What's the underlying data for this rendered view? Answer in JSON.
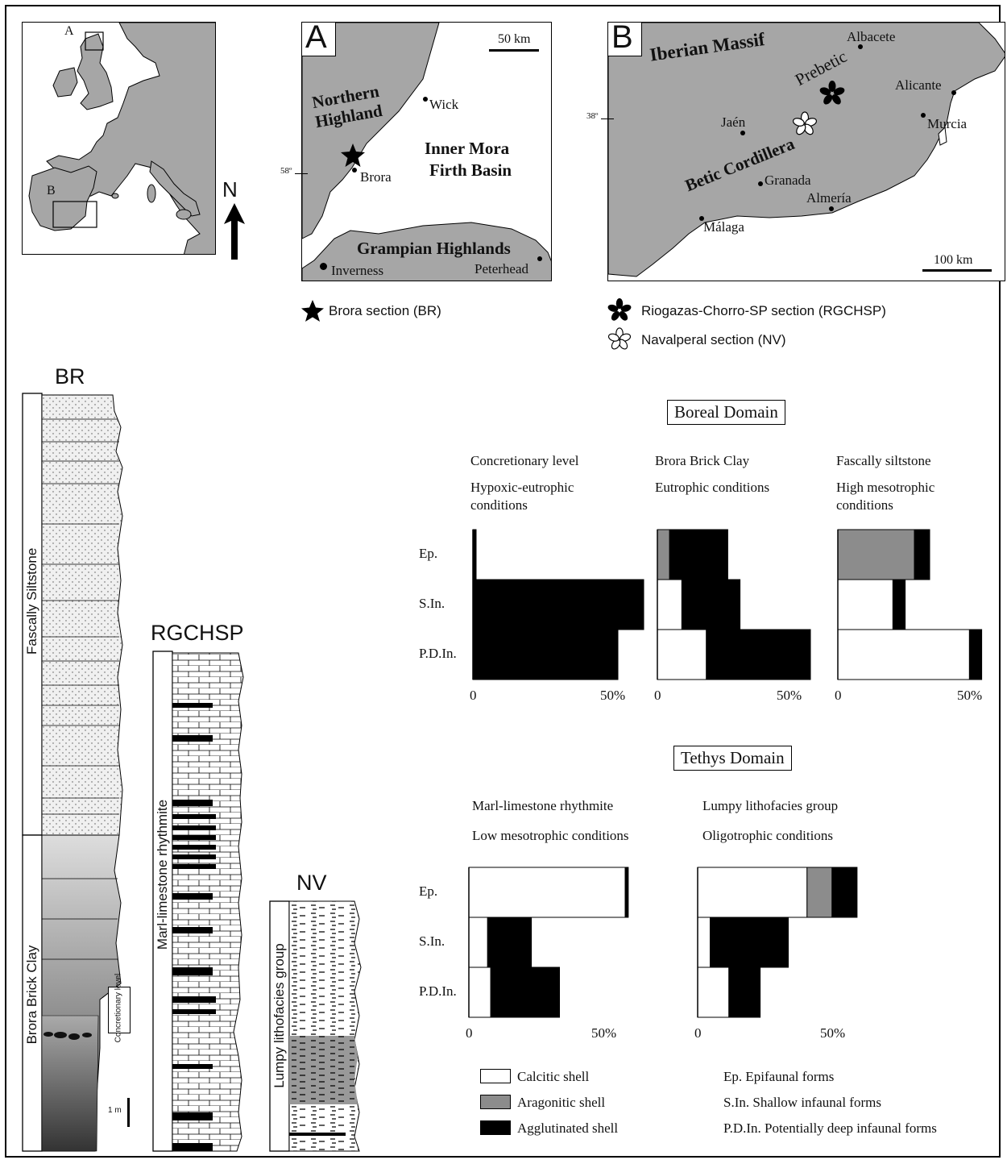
{
  "maps": {
    "overview": {
      "box_a": "A",
      "box_b": "B",
      "north": "N"
    },
    "a": {
      "letter": "A",
      "scale": "50 km",
      "lat": "58º",
      "regions": [
        "Northern",
        "Highland",
        "Inner Mora",
        "Firth Basin",
        "Grampian Highlands"
      ],
      "places": [
        "Wick",
        "Brora",
        "Inverness",
        "Peterhead"
      ],
      "legend": "Brora section (BR)"
    },
    "b": {
      "letter": "B",
      "scale": "100 km",
      "lat": "38º",
      "regions": [
        "Iberian Massif",
        "Prebetic",
        "Betic Cordillera"
      ],
      "places": [
        "Albacete",
        "Alicante",
        "Murcia",
        "Jaén",
        "Granada",
        "Almería",
        "Málaga"
      ],
      "legend": [
        "Riogazas-Chorro-SP section (RGCHSP)",
        "Navalperal section (NV)"
      ]
    }
  },
  "sections": {
    "br": {
      "title": "BR",
      "units": [
        "Fascally Siltstone",
        "Brora Brick Clay"
      ],
      "note": "Concretionary level",
      "scale": "1 m"
    },
    "rgchsp": {
      "title": "RGCHSP",
      "unit": "Marl-limestone rhythmite"
    },
    "nv": {
      "title": "NV",
      "unit": "Lumpy lithofacies group"
    }
  },
  "colors": {
    "calcitic": "#ffffff",
    "aragonitic": "#8c8c8c",
    "agglutinated": "#000000",
    "map_land": "#a6a6a6"
  },
  "chart_data": [
    {
      "type": "bar",
      "domain": "Boreal Domain",
      "title": "Concretionary level",
      "subtitle": "Hypoxic-eutrophic conditions",
      "categories": [
        "Ep.",
        "S.In.",
        "P.D.In."
      ],
      "series": [
        {
          "name": "Calcitic shell",
          "values": [
            0,
            0,
            0
          ]
        },
        {
          "name": "Aragonitic shell",
          "values": [
            0,
            0,
            0
          ]
        },
        {
          "name": "Agglutinated shell",
          "values": [
            1,
            53,
            45
          ]
        }
      ],
      "xlim": [
        0,
        53
      ],
      "tick_labels": [
        "0",
        "50%"
      ]
    },
    {
      "type": "bar",
      "domain": "Boreal Domain",
      "title": "Brora Brick Clay",
      "subtitle": "Eutrophic conditions",
      "categories": [
        "Ep.",
        "S.In.",
        "P.D.In."
      ],
      "series": [
        {
          "name": "Calcitic shell",
          "values": [
            0,
            8,
            16
          ]
        },
        {
          "name": "Aragonitic shell",
          "values": [
            4,
            0,
            0
          ]
        },
        {
          "name": "Agglutinated shell",
          "values": [
            19,
            19,
            34
          ]
        }
      ],
      "xlim": [
        0,
        50
      ],
      "tick_labels": [
        "0",
        "50%"
      ]
    },
    {
      "type": "bar",
      "domain": "Boreal Domain",
      "title": "Fascally siltstone",
      "subtitle": "High mesotrophic conditions",
      "categories": [
        "Ep.",
        "S.In.",
        "P.D.In."
      ],
      "series": [
        {
          "name": "Calcitic shell",
          "values": [
            0,
            18,
            43
          ]
        },
        {
          "name": "Aragonitic shell",
          "values": [
            25,
            0,
            0
          ]
        },
        {
          "name": "Agglutinated shell",
          "values": [
            5,
            4,
            4
          ]
        }
      ],
      "xlim": [
        0,
        50
      ],
      "tick_labels": [
        "0",
        "50%"
      ]
    },
    {
      "type": "bar",
      "domain": "Tethys Domain",
      "title": "Marl-limestone rhythmite",
      "subtitle": "Low mesotrophic conditions",
      "categories": [
        "Ep.",
        "S.In.",
        "P.D.In."
      ],
      "series": [
        {
          "name": "Calcitic shell",
          "values": [
            50,
            6,
            7
          ]
        },
        {
          "name": "Aragonitic shell",
          "values": [
            0,
            0,
            0
          ]
        },
        {
          "name": "Agglutinated shell",
          "values": [
            1,
            14,
            22
          ]
        }
      ],
      "xlim": [
        0,
        50
      ],
      "tick_labels": [
        "0",
        "50%"
      ]
    },
    {
      "type": "bar",
      "domain": "Tethys Domain",
      "title": "Lumpy lithofacies group",
      "subtitle": "Oligotrophic conditions",
      "categories": [
        "Ep.",
        "S.In.",
        "P.D.In."
      ],
      "series": [
        {
          "name": "Calcitic shell",
          "values": [
            35,
            4,
            10
          ]
        },
        {
          "name": "Aragonitic shell",
          "values": [
            8,
            0,
            0
          ]
        },
        {
          "name": "Agglutinated shell",
          "values": [
            8,
            25,
            10
          ]
        }
      ],
      "xlim": [
        0,
        50
      ],
      "tick_labels": [
        "0",
        "50%"
      ]
    }
  ],
  "legend": {
    "items": [
      "Calcitic shell",
      "Aragonitic shell",
      "Agglutinated shell"
    ],
    "abbreviations": [
      "Ep. Epifaunal forms",
      "S.In. Shallow infaunal forms",
      "P.D.In. Potentially deep infaunal forms"
    ]
  }
}
